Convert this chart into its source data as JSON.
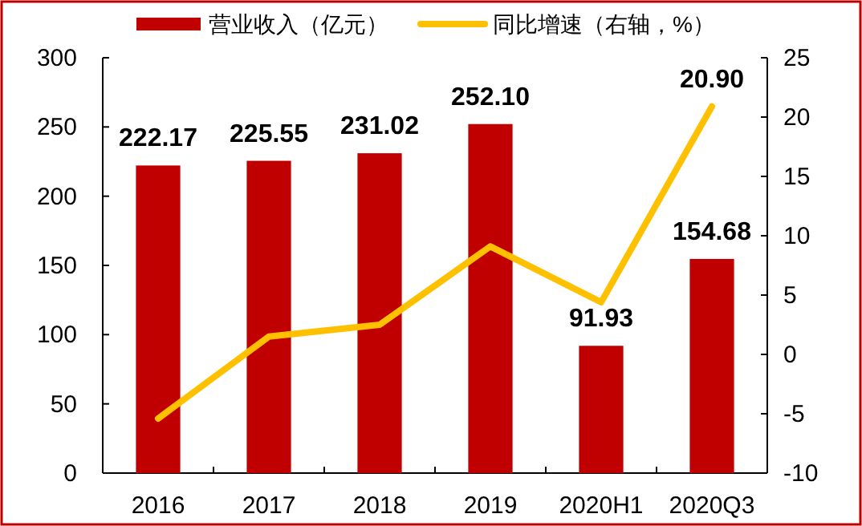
{
  "chart_data": {
    "type": "bar",
    "categories": [
      "2016",
      "2017",
      "2018",
      "2019",
      "2020H1",
      "2020Q3"
    ],
    "series": [
      {
        "name": "营业收入（亿元）",
        "color": "#c00000",
        "values": [
          222.17,
          225.55,
          231.02,
          252.1,
          91.93,
          154.68
        ],
        "value_labels": [
          "222.17",
          "225.55",
          "231.02",
          "252.10",
          "91.93",
          "154.68"
        ]
      },
      {
        "name": "同比增速（右轴，%）",
        "type": "line",
        "axis": "y2",
        "color": "#ffc000",
        "values": [
          -5.4,
          1.5,
          2.5,
          9.1,
          4.4,
          20.9
        ],
        "value_labels": [
          null,
          null,
          null,
          null,
          null,
          "20.90"
        ]
      }
    ],
    "ylim": [
      0,
      300
    ],
    "yticks": [
      0,
      50,
      100,
      150,
      200,
      250,
      300
    ],
    "y2lim": [
      -10,
      25
    ],
    "y2ticks": [
      -10,
      -5,
      0,
      5,
      10,
      15,
      20,
      25
    ],
    "legend": "top",
    "grid": false,
    "marker": "none",
    "line_style": "solid"
  }
}
